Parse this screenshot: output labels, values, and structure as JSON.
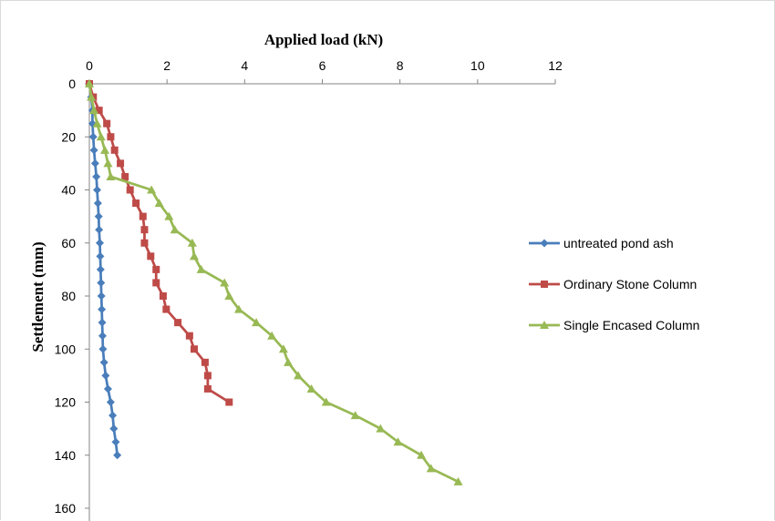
{
  "chart_data": {
    "type": "line",
    "title": "",
    "xlabel": "Applied load (kN)",
    "ylabel": "Settlement (mm)",
    "x_axis_position": "top",
    "y_axis_inverted": true,
    "xlim": [
      0,
      12
    ],
    "ylim": [
      0,
      160
    ],
    "x_ticks": [
      0,
      2,
      4,
      6,
      8,
      10,
      12
    ],
    "y_ticks": [
      0,
      20,
      40,
      60,
      80,
      100,
      120,
      140,
      160
    ],
    "grid": false,
    "legend_position": "right",
    "series": [
      {
        "name": "untreated pond ash",
        "color": "#4a7ebb",
        "marker": "diamond",
        "points": [
          [
            0.0,
            0
          ],
          [
            0.05,
            5
          ],
          [
            0.08,
            10
          ],
          [
            0.08,
            15
          ],
          [
            0.1,
            20
          ],
          [
            0.12,
            25
          ],
          [
            0.15,
            30
          ],
          [
            0.18,
            35
          ],
          [
            0.2,
            40
          ],
          [
            0.22,
            45
          ],
          [
            0.24,
            50
          ],
          [
            0.25,
            55
          ],
          [
            0.27,
            60
          ],
          [
            0.28,
            65
          ],
          [
            0.29,
            70
          ],
          [
            0.3,
            75
          ],
          [
            0.31,
            80
          ],
          [
            0.32,
            85
          ],
          [
            0.33,
            90
          ],
          [
            0.34,
            95
          ],
          [
            0.35,
            100
          ],
          [
            0.38,
            105
          ],
          [
            0.42,
            110
          ],
          [
            0.48,
            115
          ],
          [
            0.55,
            120
          ],
          [
            0.6,
            125
          ],
          [
            0.63,
            130
          ],
          [
            0.68,
            135
          ],
          [
            0.72,
            140
          ]
        ]
      },
      {
        "name": "Ordinary Stone Column",
        "color": "#be4b48",
        "marker": "square",
        "points": [
          [
            0.0,
            0
          ],
          [
            0.1,
            5
          ],
          [
            0.25,
            10
          ],
          [
            0.45,
            15
          ],
          [
            0.55,
            20
          ],
          [
            0.65,
            25
          ],
          [
            0.8,
            30
          ],
          [
            0.92,
            35
          ],
          [
            1.05,
            40
          ],
          [
            1.2,
            45
          ],
          [
            1.38,
            50
          ],
          [
            1.42,
            55
          ],
          [
            1.42,
            60
          ],
          [
            1.58,
            65
          ],
          [
            1.72,
            70
          ],
          [
            1.72,
            75
          ],
          [
            1.9,
            80
          ],
          [
            1.98,
            85
          ],
          [
            2.28,
            90
          ],
          [
            2.58,
            95
          ],
          [
            2.7,
            100
          ],
          [
            2.98,
            105
          ],
          [
            3.05,
            110
          ],
          [
            3.05,
            115
          ],
          [
            3.6,
            120
          ]
        ]
      },
      {
        "name": "Single Encased Column",
        "color": "#98b954",
        "marker": "triangle",
        "points": [
          [
            0.0,
            0
          ],
          [
            0.05,
            5
          ],
          [
            0.12,
            10
          ],
          [
            0.2,
            15
          ],
          [
            0.3,
            20
          ],
          [
            0.4,
            25
          ],
          [
            0.48,
            30
          ],
          [
            0.55,
            35
          ],
          [
            1.6,
            40
          ],
          [
            1.8,
            45
          ],
          [
            2.05,
            50
          ],
          [
            2.2,
            55
          ],
          [
            2.65,
            60
          ],
          [
            2.7,
            65
          ],
          [
            2.88,
            70
          ],
          [
            3.48,
            75
          ],
          [
            3.6,
            80
          ],
          [
            3.85,
            85
          ],
          [
            4.3,
            90
          ],
          [
            4.7,
            95
          ],
          [
            5.0,
            100
          ],
          [
            5.12,
            105
          ],
          [
            5.38,
            110
          ],
          [
            5.72,
            115
          ],
          [
            6.1,
            120
          ],
          [
            6.85,
            125
          ],
          [
            7.5,
            130
          ],
          [
            7.95,
            135
          ],
          [
            8.55,
            140
          ],
          [
            8.8,
            145
          ],
          [
            9.5,
            150
          ]
        ]
      }
    ]
  }
}
